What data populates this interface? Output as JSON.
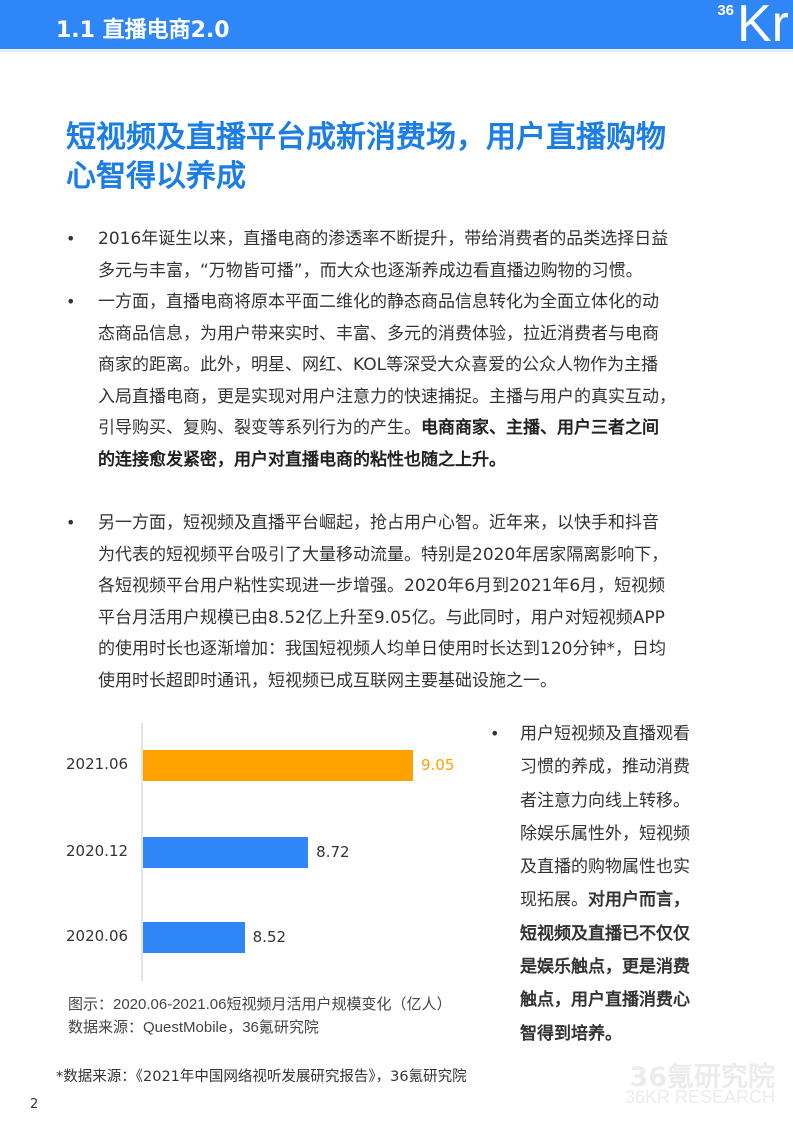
{
  "header": {
    "section_title": "1.1 直播电商2.0",
    "logo_small": "36",
    "logo_large": "Kr"
  },
  "title": {
    "lines": [
      "短视频及直播平台成新消费场，用户直播购物",
      "心智得以养成"
    ]
  },
  "bullets": [
    {
      "lines": [
        {
          "t": "2016年诞生以来，直播电商的渗透率不断提升，带给消费者的品类选择日益"
        },
        {
          "t": "多元与丰富，“万物皆可播”，而大众也逐渐养成边看直播边购物的习惯。"
        }
      ]
    },
    {
      "lines": [
        {
          "t": "一方面，直播电商将原本平面二维化的静态商品信息转化为全面立体化的动"
        },
        {
          "t": "态商品信息，为用户带来实时、丰富、多元的消费体验，拉近消费者与电商"
        },
        {
          "t": "商家的距离。此外，明星、网红、KOL等深受大众喜爱的公众人物作为主播"
        },
        {
          "t": "入局直播电商，更是实现对用户注意力的快速捕捉。主播与用户的真实互动，"
        },
        {
          "t": "引导购买、复购、裂变等系列行为的产生。",
          "b": "电商商家、主播、用户三者之间"
        },
        {
          "t": "",
          "b": "的连接愈发紧密，用户对直播电商的粘性也随之上升。"
        }
      ]
    },
    {
      "lines": [
        {
          "t": "另一方面，短视频及直播平台崛起，抢占用户心智。近年来，以快手和抖音"
        },
        {
          "t": "为代表的短视频平台吸引了大量移动流量。特别是2020年居家隔离影响下，"
        },
        {
          "t": "各短视频平台用户粘性实现进一步增强。2020年6月到2021年6月，短视频"
        },
        {
          "t": "平台月活用户规模已由8.52亿上升至9.05亿。与此同时，用户对短视频APP"
        },
        {
          "t": "的使用时长也逐渐增加：我国短视频人均单日使用时长达到120分钟*，日均"
        },
        {
          "t": "使用时长超即时通讯，短视频已成互联网主要基础设施之一。"
        }
      ]
    }
  ],
  "bullet_symbol": "•",
  "side_bullet": {
    "lines": [
      {
        "t": "用户短视频及直播观看"
      },
      {
        "t": "习惯的养成，推动消费"
      },
      {
        "t": "者注意力向线上转移。"
      },
      {
        "t": "除娱乐属性外，短视频"
      },
      {
        "t": "及直播的购物属性也实"
      },
      {
        "t": "现拓展。",
        "b": "对用户而言，"
      },
      {
        "t": "",
        "b": "短视频及直播已不仅仅"
      },
      {
        "t": "",
        "b": "是娱乐触点，更是消费"
      },
      {
        "t": "",
        "b": "触点，用户直播消费心"
      },
      {
        "t": "",
        "b": "智得到培养。"
      }
    ]
  },
  "chart_data": {
    "type": "bar",
    "orientation": "horizontal",
    "categories": [
      "2021.06",
      "2020.12",
      "2020.06"
    ],
    "values": [
      9.05,
      8.72,
      8.52
    ],
    "labels": [
      "9.05",
      "8.72",
      "8.52"
    ],
    "colors": [
      "#ffa200",
      "#2f86f6",
      "#2f86f6"
    ],
    "label_colors": [
      "#ffa200",
      "#333333",
      "#333333"
    ],
    "xlim": [
      8.2,
      9.05
    ],
    "grid": false,
    "caption": "图示：2020.06-2021.06短视频月活用户规模变化（亿人）",
    "source": "数据来源：QuestMobile，36氪研究院"
  },
  "footnote": "*数据来源：《2021年中国网络视听发展研究报告》，36氪研究院",
  "page_number": "2",
  "watermark": {
    "cn": "36氪研究院",
    "en": "36KR RESEARCH"
  }
}
